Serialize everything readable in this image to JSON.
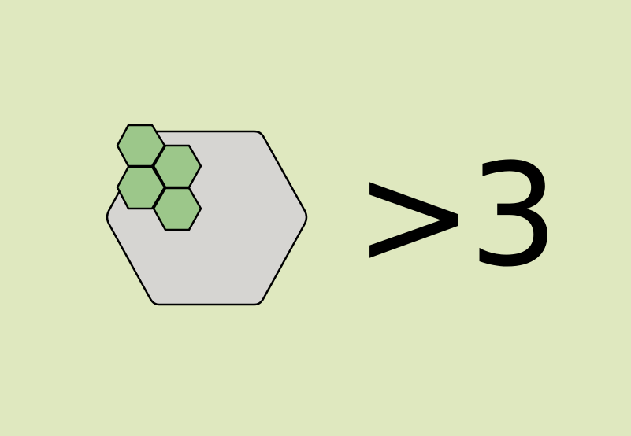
{
  "condition_text": ">3",
  "big_hex_fill": "#d6d5d2",
  "small_hex_fill": "#9cc78a",
  "background_color": "#dfe8bf",
  "small_hex_count": 4
}
